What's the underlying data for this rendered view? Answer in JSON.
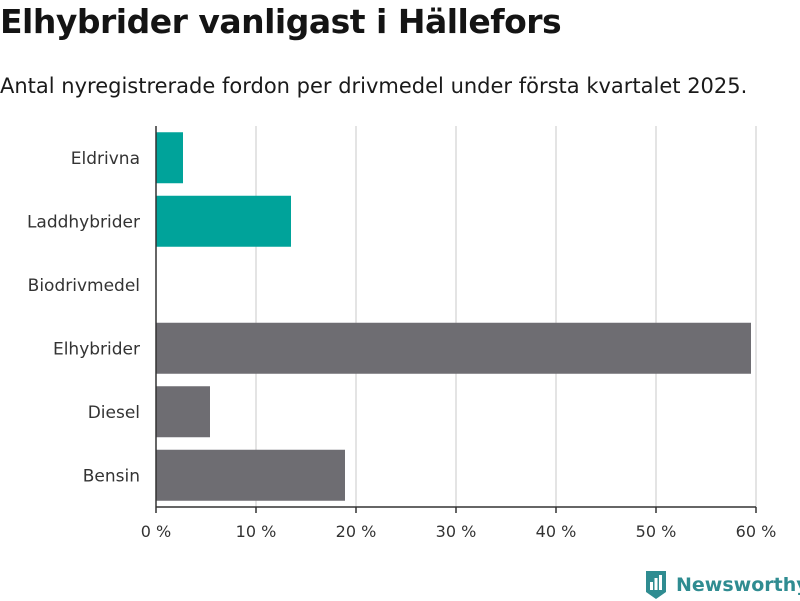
{
  "header": {
    "title": "Elhybrider vanligast i Hällefors",
    "subtitle": "Antal nyregistrerade fordon per drivmedel under första kvartalet 2025."
  },
  "brand": {
    "name": "Newsworthy",
    "icon": "newsworthy-logo-icon",
    "color": "#2f8c91"
  },
  "chart_data": {
    "type": "bar",
    "orientation": "horizontal",
    "categories": [
      "Eldrivna",
      "Laddhybrider",
      "Biodrivmedel",
      "Elhybrider",
      "Diesel",
      "Bensin"
    ],
    "values": [
      2.7,
      13.5,
      0,
      59.5,
      5.4,
      18.9
    ],
    "colors": [
      "#00a39a",
      "#00a39a",
      "#00a39a",
      "#6e6d72",
      "#6e6d72",
      "#6e6d72"
    ],
    "xlim": [
      0,
      60
    ],
    "ticks": [
      0,
      10,
      20,
      30,
      40,
      50,
      60
    ],
    "tick_labels": [
      "0 %",
      "10 %",
      "20 %",
      "30 %",
      "40 %",
      "50 %",
      "60 %"
    ],
    "grid": true,
    "legend": "none"
  }
}
